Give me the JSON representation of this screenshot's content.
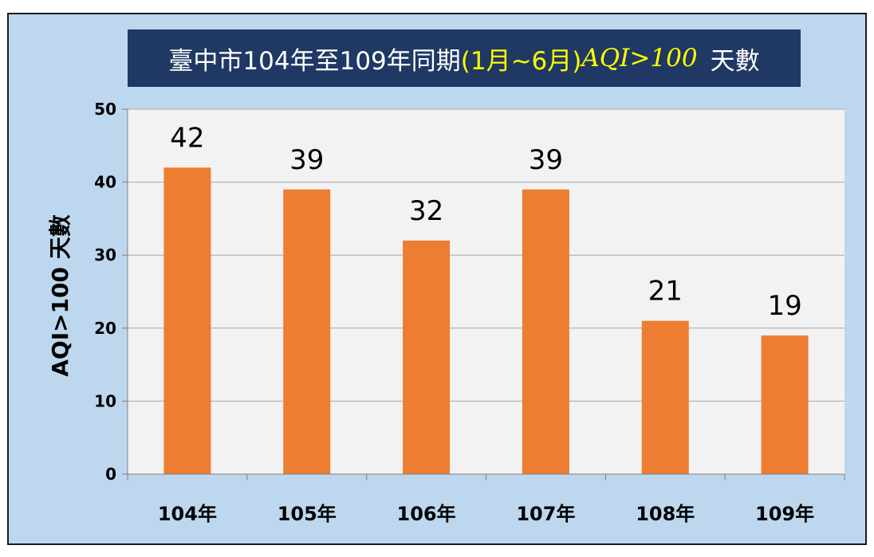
{
  "chart_data": {
    "type": "bar",
    "title": {
      "part1": "臺中市104年至109年同期",
      "part2": "(1月~6月)",
      "part3": "AQI>100",
      "part4": "天數"
    },
    "xlabel": "",
    "ylabel": "AQI>100 天數",
    "categories": [
      "104年",
      "105年",
      "106年",
      "107年",
      "108年",
      "109年"
    ],
    "values": [
      42,
      39,
      32,
      39,
      21,
      19
    ],
    "ylim": [
      0,
      50
    ],
    "yticks": [
      0,
      10,
      20,
      30,
      40,
      50
    ],
    "grid": true,
    "legend": "none",
    "bar_color": "#ed7d31",
    "plot_background": "#f2f2f2",
    "background": "#bdd7ee",
    "title_background": "#1f3864",
    "title_highlight_color": "#ffff00"
  }
}
